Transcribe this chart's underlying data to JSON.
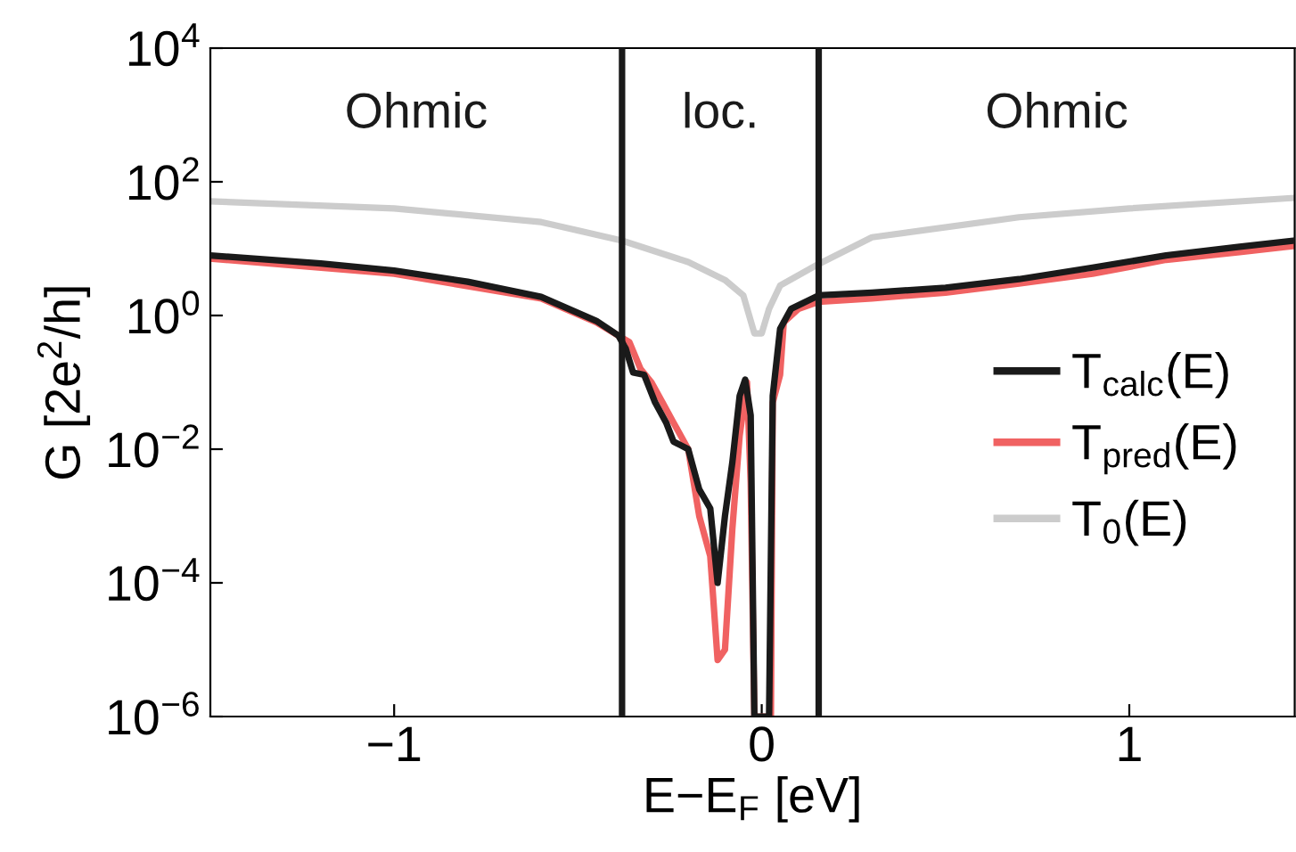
{
  "chart_data": {
    "type": "line",
    "xlabel": "E−E$_{F}$ [eV]",
    "ylabel": "G [2e$^{2}$/h]",
    "log": "y",
    "grid": false,
    "legend": "right",
    "marker": "none",
    "line_style": "solid",
    "xlim": [
      -1.5,
      1.45
    ],
    "xticks": [
      {
        "value": -1,
        "label": "−1"
      },
      0,
      1
    ],
    "ylim": [
      1e-06,
      10000.0
    ],
    "yticks": [
      {
        "value": 1e-06,
        "label": "10$^{−6}$"
      },
      {
        "value": 0.0001,
        "label": "10$^{−4}$"
      },
      {
        "value": 0.01,
        "label": "10$^{−2}$"
      },
      {
        "value": 1,
        "label": "10$^{0}$"
      },
      {
        "value": 100,
        "label": "10$^{2}$"
      },
      {
        "value": 10000,
        "label": "10$^{4}$"
      }
    ],
    "series": [
      {
        "name": "T$_{calc}$(E)",
        "color": "#1a1a1a",
        "x": [
          -1.5,
          -1.2,
          -1.0,
          -0.8,
          -0.6,
          -0.45,
          -0.39,
          -0.37,
          -0.35,
          -0.32,
          -0.29,
          -0.26,
          -0.24,
          -0.2,
          -0.17,
          -0.14,
          -0.12,
          -0.1,
          -0.08,
          -0.06,
          -0.045,
          -0.03,
          -0.02,
          0.02,
          0.03,
          0.05,
          0.08,
          0.155,
          0.3,
          0.5,
          0.7,
          0.9,
          1.1,
          1.3,
          1.45
        ],
        "values": [
          7.9,
          6.0,
          4.7,
          3.2,
          1.9,
          0.83,
          0.5,
          0.32,
          0.14,
          0.13,
          0.05,
          0.025,
          0.013,
          0.01,
          0.0025,
          0.0013,
          0.0001,
          0.001,
          0.0063,
          0.063,
          0.11,
          0.032,
          1e-06,
          1e-06,
          0.063,
          0.63,
          1.26,
          2.0,
          2.2,
          2.6,
          3.5,
          5.2,
          7.9,
          10.7,
          13.2
        ]
      },
      {
        "name": "T$_{pred}$(E)",
        "color": "#f06262",
        "x": [
          -1.5,
          -1.0,
          -0.6,
          -0.45,
          -0.39,
          -0.36,
          -0.33,
          -0.3,
          -0.27,
          -0.24,
          -0.2,
          -0.17,
          -0.14,
          -0.12,
          -0.1,
          -0.08,
          -0.06,
          -0.04,
          -0.03,
          -0.02,
          0.025,
          0.03,
          0.05,
          0.06,
          0.1,
          0.155,
          0.3,
          0.5,
          0.7,
          0.9,
          1.1,
          1.3,
          1.45
        ],
        "values": [
          7.1,
          4.2,
          1.8,
          0.79,
          0.5,
          0.4,
          0.16,
          0.1,
          0.05,
          0.025,
          0.01,
          0.001,
          0.00025,
          7e-06,
          1e-05,
          0.00063,
          0.016,
          0.1,
          0.0032,
          1e-06,
          1e-06,
          0.05,
          0.13,
          0.79,
          1.26,
          1.6,
          1.8,
          2.2,
          3.0,
          4.2,
          6.8,
          8.9,
          11
        ]
      },
      {
        "name": "T$_{0}$(E)",
        "color": "#cccccc",
        "x": [
          -1.5,
          -1.0,
          -0.6,
          -0.38,
          -0.2,
          -0.1,
          -0.05,
          -0.02,
          0.0,
          0.02,
          0.05,
          0.155,
          0.3,
          0.7,
          1.0,
          1.45
        ],
        "values": [
          51,
          40,
          25,
          13.2,
          6.3,
          3.4,
          2.0,
          0.54,
          0.54,
          1.26,
          2.8,
          5.9,
          14.8,
          29.5,
          40,
          57.5
        ]
      }
    ],
    "ref_lines": [
      {
        "axis": "x",
        "value": -0.38,
        "color": "#1a1a1a"
      },
      {
        "axis": "x",
        "value": 0.155,
        "color": "#1a1a1a"
      }
    ],
    "annotations": [
      "Ohmic",
      "loc.",
      "Ohmic"
    ]
  }
}
